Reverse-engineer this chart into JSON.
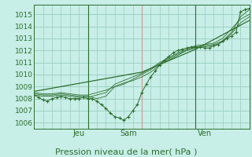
{
  "background_color": "#c8eee8",
  "grid_color": "#99ccbb",
  "line_color": "#2d6e2d",
  "red_grid_color": "#cc9999",
  "title": "Pression niveau de la mer( hPa )",
  "ylabel_ticks": [
    1006,
    1007,
    1008,
    1009,
    1010,
    1011,
    1012,
    1013,
    1014,
    1015
  ],
  "xlim": [
    0,
    96
  ],
  "ylim": [
    1005.5,
    1015.8
  ],
  "day_lines_green": [
    24,
    72
  ],
  "day_lines_red": [
    48
  ],
  "day_labels": [
    [
      20,
      "Jeu"
    ],
    [
      42,
      "Sam"
    ],
    [
      76,
      "Ven"
    ]
  ],
  "series": [
    [
      0,
      1008.3,
      2,
      1008.1,
      4,
      1007.9,
      6,
      1007.8,
      8,
      1008.0,
      10,
      1008.1,
      12,
      1008.2,
      14,
      1008.1,
      16,
      1008.0,
      18,
      1008.0,
      20,
      1008.0,
      22,
      1008.1,
      24,
      1008.0,
      26,
      1008.0,
      28,
      1007.8,
      30,
      1007.5,
      32,
      1007.2,
      34,
      1006.8,
      36,
      1006.5,
      38,
      1006.4,
      40,
      1006.2,
      42,
      1006.5,
      44,
      1007.0,
      46,
      1007.5,
      48,
      1008.5,
      50,
      1009.2,
      52,
      1009.8,
      54,
      1010.3,
      56,
      1010.8,
      58,
      1011.2,
      60,
      1011.5,
      62,
      1011.8,
      64,
      1012.0,
      66,
      1012.1,
      68,
      1012.2,
      70,
      1012.3,
      72,
      1012.3,
      74,
      1012.3,
      76,
      1012.2,
      78,
      1012.2,
      80,
      1012.4,
      82,
      1012.5,
      84,
      1012.8,
      86,
      1013.0,
      88,
      1013.2,
      90,
      1013.5,
      92,
      1015.2,
      94,
      1015.4,
      96,
      1015.5
    ],
    [
      0,
      1008.4,
      4,
      1008.3,
      8,
      1008.3,
      12,
      1008.4,
      16,
      1008.3,
      20,
      1008.2,
      24,
      1008.2,
      28,
      1008.0,
      32,
      1008.2,
      36,
      1009.0,
      40,
      1009.3,
      44,
      1009.5,
      48,
      1009.8,
      52,
      1010.2,
      56,
      1010.8,
      60,
      1011.2,
      64,
      1011.6,
      68,
      1012.0,
      72,
      1012.3,
      76,
      1012.4,
      80,
      1012.5,
      84,
      1012.8,
      88,
      1013.5,
      92,
      1014.8,
      96,
      1015.4
    ],
    [
      0,
      1008.3,
      4,
      1008.2,
      8,
      1008.2,
      12,
      1008.3,
      16,
      1008.2,
      20,
      1008.1,
      24,
      1008.1,
      28,
      1008.3,
      32,
      1008.5,
      36,
      1009.2,
      40,
      1009.5,
      44,
      1009.8,
      48,
      1010.1,
      52,
      1010.5,
      56,
      1011.0,
      60,
      1011.4,
      64,
      1011.8,
      68,
      1012.1,
      72,
      1012.4,
      76,
      1012.5,
      80,
      1012.6,
      84,
      1013.0,
      88,
      1013.8,
      92,
      1014.6,
      96,
      1015.0
    ],
    [
      0,
      1008.5,
      4,
      1008.4,
      8,
      1008.4,
      12,
      1008.5,
      16,
      1008.4,
      20,
      1008.3,
      24,
      1008.3,
      28,
      1008.5,
      32,
      1008.7,
      36,
      1009.0,
      40,
      1009.2,
      44,
      1009.6,
      48,
      1010.0,
      52,
      1010.4,
      56,
      1010.9,
      60,
      1011.3,
      64,
      1011.7,
      68,
      1012.0,
      72,
      1012.2,
      76,
      1012.3,
      80,
      1012.4,
      84,
      1012.7,
      88,
      1013.4,
      92,
      1014.3,
      96,
      1014.8
    ],
    [
      0,
      1008.6,
      48,
      1010.2,
      72,
      1012.1,
      96,
      1014.5
    ]
  ]
}
